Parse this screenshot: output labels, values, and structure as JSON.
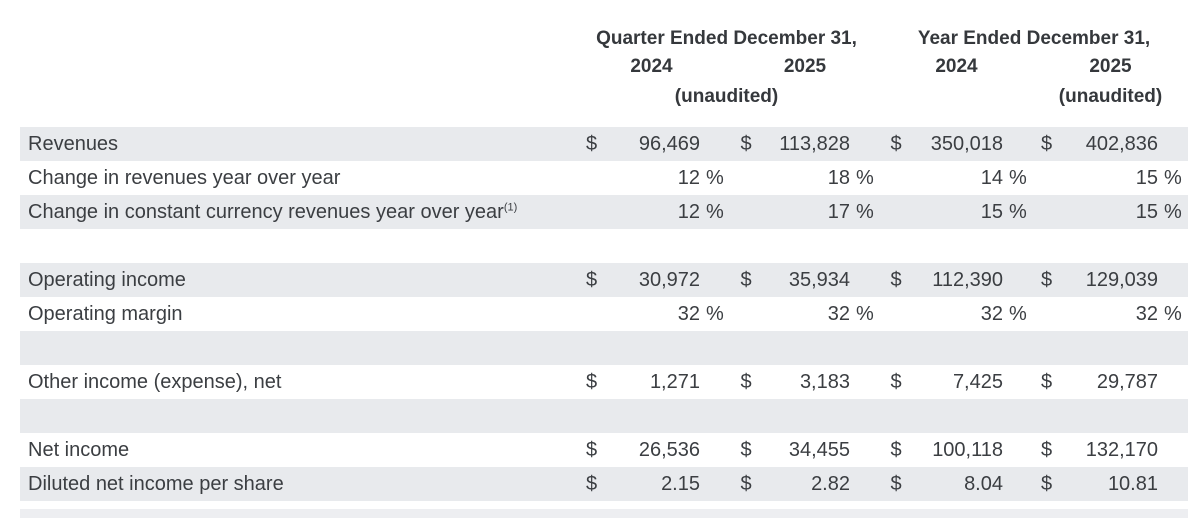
{
  "table": {
    "currency_symbol": "$",
    "percent_symbol": "%",
    "col_groups": [
      {
        "title": "Quarter Ended December 31,",
        "years": [
          "2024",
          "2025"
        ],
        "unaudited": "(unaudited)"
      },
      {
        "title": "Year Ended December 31,",
        "years": [
          "2024",
          "2025"
        ],
        "unaudited": "(unaudited)"
      }
    ],
    "rows": [
      {
        "label": "Revenues",
        "type": "currency",
        "shaded": true,
        "values": [
          "96,469",
          "113,828",
          "350,018",
          "402,836"
        ]
      },
      {
        "label": "Change in revenues year over year",
        "type": "percent",
        "shaded": false,
        "values": [
          "12",
          "18",
          "14",
          "15"
        ]
      },
      {
        "label": "Change in constant currency revenues year over year",
        "footnote": "(1)",
        "type": "percent",
        "shaded": true,
        "values": [
          "12",
          "17",
          "15",
          "15"
        ]
      },
      {
        "type": "spacer",
        "shaded": false
      },
      {
        "label": "Operating income",
        "type": "currency",
        "shaded": true,
        "values": [
          "30,972",
          "35,934",
          "112,390",
          "129,039"
        ]
      },
      {
        "label": "Operating margin",
        "type": "percent",
        "shaded": false,
        "values": [
          "32",
          "32",
          "32",
          "32"
        ]
      },
      {
        "type": "spacer",
        "shaded": true
      },
      {
        "label": "Other income (expense), net",
        "type": "currency",
        "shaded": false,
        "values": [
          "1,271",
          "3,183",
          "7,425",
          "29,787"
        ]
      },
      {
        "type": "spacer",
        "shaded": true
      },
      {
        "label": "Net income",
        "type": "currency",
        "shaded": false,
        "values": [
          "26,536",
          "34,455",
          "100,118",
          "132,170"
        ]
      },
      {
        "label": "Diluted net income per share",
        "type": "currency",
        "shaded": true,
        "values": [
          "2.15",
          "2.82",
          "8.04",
          "10.81"
        ]
      }
    ]
  },
  "colors": {
    "row_shade": "#e8eaed",
    "text": "#3b3e42",
    "header_text": "#35383c",
    "bottom_bar": "#edeef1"
  }
}
